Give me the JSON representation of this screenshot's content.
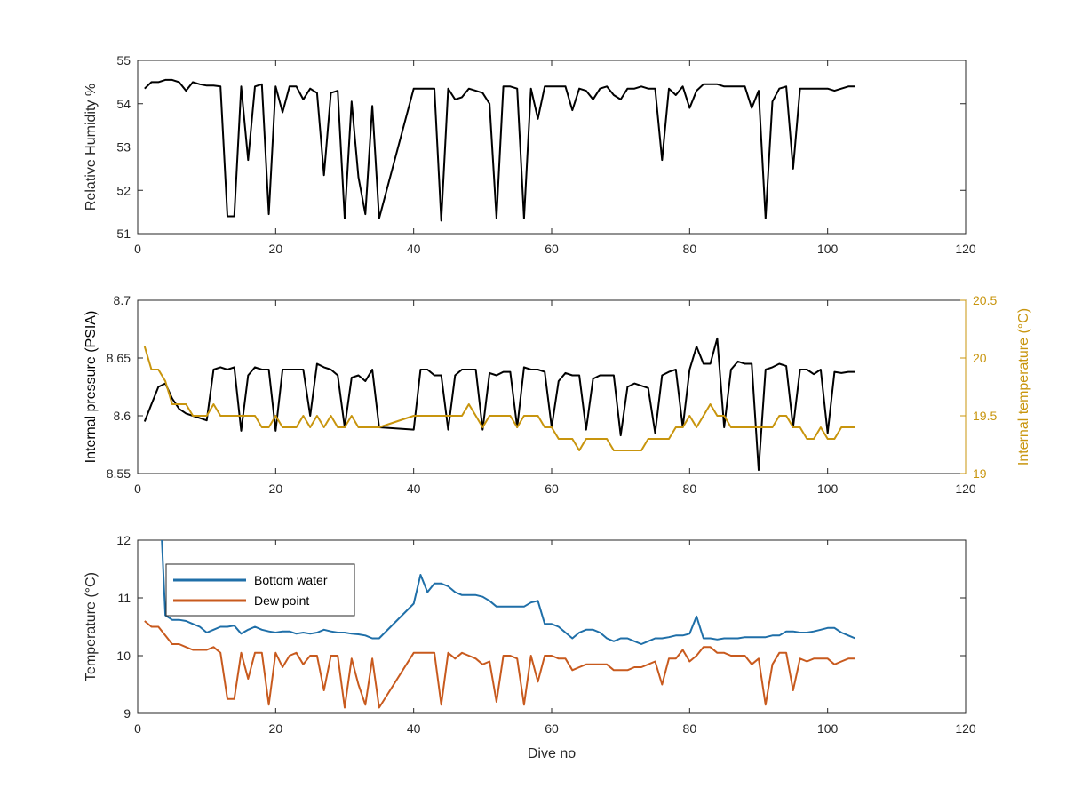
{
  "colors": {
    "black": "#000000",
    "axis": "#262626",
    "gold": "#C8950E",
    "blue": "#1F6FA8",
    "orange": "#C85A1E",
    "tick_label": "#262626"
  },
  "chart_data": [
    {
      "type": "line",
      "xlabel": "",
      "ylabel": "Relative Humidity %",
      "xlim": [
        0,
        120
      ],
      "ylim": [
        51,
        55
      ],
      "xticks": [
        "0",
        "20",
        "40",
        "60",
        "80",
        "100",
        "120"
      ],
      "yticks": [
        "51",
        "52",
        "53",
        "54",
        "55"
      ],
      "grid": false,
      "series": [
        {
          "color": "#000000",
          "x": [
            1,
            2,
            3,
            4,
            5,
            6,
            7,
            8,
            9,
            10,
            11,
            12,
            13,
            14,
            15,
            16,
            17,
            18,
            19,
            20,
            21,
            22,
            23,
            24,
            25,
            26,
            27,
            28,
            29,
            30,
            31,
            32,
            33,
            34,
            35,
            40,
            41,
            42,
            43,
            44,
            45,
            46,
            47,
            48,
            49,
            50,
            51,
            52,
            53,
            54,
            55,
            56,
            57,
            58,
            59,
            60,
            61,
            62,
            63,
            64,
            65,
            66,
            67,
            68,
            69,
            70,
            71,
            72,
            73,
            74,
            75,
            76,
            77,
            78,
            79,
            80,
            81,
            82,
            83,
            84,
            85,
            86,
            87,
            88,
            89,
            90,
            91,
            92,
            93,
            94,
            95,
            96,
            97,
            98,
            99,
            100,
            101,
            102,
            103,
            104
          ],
          "y": [
            54.35,
            54.5,
            54.5,
            54.55,
            54.55,
            54.5,
            54.3,
            54.5,
            54.45,
            54.42,
            54.42,
            54.4,
            51.4,
            51.4,
            54.4,
            52.7,
            54.4,
            54.45,
            51.45,
            54.4,
            53.8,
            54.4,
            54.4,
            54.1,
            54.35,
            54.25,
            52.35,
            54.25,
            54.3,
            51.35,
            54.05,
            52.3,
            51.45,
            53.95,
            51.35,
            54.35,
            54.35,
            54.35,
            54.35,
            51.3,
            54.35,
            54.1,
            54.15,
            54.35,
            54.3,
            54.25,
            54.0,
            51.35,
            54.4,
            54.4,
            54.35,
            51.35,
            54.35,
            53.65,
            54.4,
            54.4,
            54.4,
            54.4,
            53.85,
            54.35,
            54.3,
            54.1,
            54.35,
            54.4,
            54.2,
            54.1,
            54.35,
            54.35,
            54.4,
            54.35,
            54.35,
            52.7,
            54.35,
            54.2,
            54.4,
            53.9,
            54.3,
            54.45,
            54.45,
            54.45,
            54.4,
            54.4,
            54.4,
            54.4,
            53.9,
            54.3,
            51.35,
            54.05,
            54.35,
            54.4,
            52.5,
            54.35,
            54.35,
            54.35,
            54.35,
            54.35,
            54.3,
            54.35,
            54.4,
            54.4
          ]
        }
      ]
    },
    {
      "type": "line",
      "xlabel": "",
      "ylabel": "Internal pressure (PSIA)",
      "y2label": "Internal temperature (°C)",
      "xlim": [
        0,
        120
      ],
      "ylim": [
        8.55,
        8.7
      ],
      "y2lim": [
        19,
        20.5
      ],
      "xticks": [
        "0",
        "20",
        "40",
        "60",
        "80",
        "100",
        "120"
      ],
      "yticks": [
        "8.55",
        "8.6",
        "8.65",
        "8.7"
      ],
      "y2ticks": [
        "19",
        "19.5",
        "20",
        "20.5"
      ],
      "grid": false,
      "series": [
        {
          "axis": "left",
          "color": "#000000",
          "x": [
            1,
            2,
            3,
            4,
            5,
            6,
            7,
            8,
            9,
            10,
            11,
            12,
            13,
            14,
            15,
            16,
            17,
            18,
            19,
            20,
            21,
            22,
            23,
            24,
            25,
            26,
            27,
            28,
            29,
            30,
            31,
            32,
            33,
            34,
            35,
            40,
            41,
            42,
            43,
            44,
            45,
            46,
            47,
            48,
            49,
            50,
            51,
            52,
            53,
            54,
            55,
            56,
            57,
            58,
            59,
            60,
            61,
            62,
            63,
            64,
            65,
            66,
            67,
            68,
            69,
            70,
            71,
            72,
            73,
            74,
            75,
            76,
            77,
            78,
            79,
            80,
            81,
            82,
            83,
            84,
            85,
            86,
            87,
            88,
            89,
            90,
            91,
            92,
            93,
            94,
            95,
            96,
            97,
            98,
            99,
            100,
            101,
            102,
            103,
            104
          ],
          "y": [
            8.595,
            8.61,
            8.625,
            8.628,
            8.615,
            8.606,
            8.602,
            8.6,
            8.598,
            8.596,
            8.64,
            8.642,
            8.64,
            8.642,
            8.587,
            8.635,
            8.642,
            8.64,
            8.64,
            8.587,
            8.64,
            8.64,
            8.64,
            8.64,
            8.6,
            8.645,
            8.642,
            8.64,
            8.635,
            8.59,
            8.633,
            8.635,
            8.63,
            8.64,
            8.59,
            8.588,
            8.64,
            8.64,
            8.635,
            8.635,
            8.588,
            8.635,
            8.64,
            8.64,
            8.64,
            8.588,
            8.637,
            8.635,
            8.638,
            8.638,
            8.59,
            8.642,
            8.64,
            8.64,
            8.638,
            8.59,
            8.63,
            8.637,
            8.635,
            8.635,
            8.588,
            8.632,
            8.635,
            8.635,
            8.635,
            8.583,
            8.625,
            8.628,
            8.626,
            8.624,
            8.585,
            8.635,
            8.638,
            8.64,
            8.59,
            8.64,
            8.66,
            8.645,
            8.645,
            8.667,
            8.59,
            8.64,
            8.647,
            8.645,
            8.645,
            8.553,
            8.64,
            8.642,
            8.645,
            8.643,
            8.59,
            8.64,
            8.64,
            8.636,
            8.64,
            8.585,
            8.638,
            8.637,
            8.638,
            8.638
          ]
        },
        {
          "axis": "right",
          "color": "#C8950E",
          "x": [
            1,
            2,
            3,
            4,
            5,
            6,
            7,
            8,
            9,
            10,
            11,
            12,
            13,
            14,
            15,
            16,
            17,
            18,
            19,
            20,
            21,
            22,
            23,
            24,
            25,
            26,
            27,
            28,
            29,
            30,
            31,
            32,
            33,
            34,
            35,
            40,
            41,
            42,
            43,
            44,
            45,
            46,
            47,
            48,
            49,
            50,
            51,
            52,
            53,
            54,
            55,
            56,
            57,
            58,
            59,
            60,
            61,
            62,
            63,
            64,
            65,
            66,
            67,
            68,
            69,
            70,
            71,
            72,
            73,
            74,
            75,
            76,
            77,
            78,
            79,
            80,
            81,
            82,
            83,
            84,
            85,
            86,
            87,
            88,
            89,
            90,
            91,
            92,
            93,
            94,
            95,
            96,
            97,
            98,
            99,
            100,
            101,
            102,
            103,
            104
          ],
          "y": [
            20.1,
            19.9,
            19.9,
            19.8,
            19.6,
            19.6,
            19.6,
            19.5,
            19.5,
            19.5,
            19.6,
            19.5,
            19.5,
            19.5,
            19.5,
            19.5,
            19.5,
            19.4,
            19.4,
            19.5,
            19.4,
            19.4,
            19.4,
            19.5,
            19.4,
            19.5,
            19.4,
            19.5,
            19.4,
            19.4,
            19.5,
            19.4,
            19.4,
            19.4,
            19.4,
            19.5,
            19.5,
            19.5,
            19.5,
            19.5,
            19.5,
            19.5,
            19.5,
            19.6,
            19.5,
            19.4,
            19.5,
            19.5,
            19.5,
            19.5,
            19.4,
            19.5,
            19.5,
            19.5,
            19.4,
            19.4,
            19.3,
            19.3,
            19.3,
            19.2,
            19.3,
            19.3,
            19.3,
            19.3,
            19.2,
            19.2,
            19.2,
            19.2,
            19.2,
            19.3,
            19.3,
            19.3,
            19.3,
            19.4,
            19.4,
            19.5,
            19.4,
            19.5,
            19.6,
            19.5,
            19.5,
            19.4,
            19.4,
            19.4,
            19.4,
            19.4,
            19.4,
            19.4,
            19.5,
            19.5,
            19.4,
            19.4,
            19.3,
            19.3,
            19.4,
            19.3,
            19.3,
            19.4,
            19.4,
            19.4
          ]
        }
      ]
    },
    {
      "type": "line",
      "xlabel": "Dive no",
      "ylabel": "Temperature (°C)",
      "xlim": [
        0,
        120
      ],
      "ylim": [
        9,
        12
      ],
      "xticks": [
        "0",
        "20",
        "40",
        "60",
        "80",
        "100",
        "120"
      ],
      "yticks": [
        "9",
        "10",
        "11",
        "12"
      ],
      "grid": false,
      "legend": "top-left",
      "series": [
        {
          "name": "Bottom water",
          "color": "#1F6FA8",
          "x": [
            3.5,
            4,
            5,
            6,
            7,
            8,
            9,
            10,
            11,
            12,
            13,
            14,
            15,
            16,
            17,
            18,
            19,
            20,
            21,
            22,
            23,
            24,
            25,
            26,
            27,
            28,
            29,
            30,
            31,
            32,
            33,
            34,
            35,
            40,
            41,
            42,
            43,
            44,
            45,
            46,
            47,
            48,
            49,
            50,
            51,
            52,
            53,
            54,
            55,
            56,
            57,
            58,
            59,
            60,
            61,
            62,
            63,
            64,
            65,
            66,
            67,
            68,
            69,
            70,
            71,
            72,
            73,
            74,
            75,
            76,
            77,
            78,
            79,
            80,
            81,
            82,
            83,
            84,
            85,
            86,
            87,
            88,
            89,
            90,
            91,
            92,
            93,
            94,
            95,
            96,
            97,
            98,
            99,
            100,
            101,
            102,
            103,
            104
          ],
          "y": [
            12.0,
            10.7,
            10.62,
            10.62,
            10.6,
            10.55,
            10.5,
            10.4,
            10.45,
            10.5,
            10.5,
            10.52,
            10.38,
            10.45,
            10.5,
            10.45,
            10.42,
            10.4,
            10.42,
            10.42,
            10.38,
            10.4,
            10.38,
            10.4,
            10.45,
            10.42,
            10.4,
            10.4,
            10.38,
            10.37,
            10.35,
            10.3,
            10.3,
            10.9,
            11.4,
            11.1,
            11.25,
            11.25,
            11.2,
            11.1,
            11.05,
            11.05,
            11.05,
            11.02,
            10.95,
            10.85,
            10.85,
            10.85,
            10.85,
            10.85,
            10.92,
            10.95,
            10.55,
            10.55,
            10.5,
            10.4,
            10.3,
            10.4,
            10.45,
            10.45,
            10.4,
            10.3,
            10.25,
            10.3,
            10.3,
            10.25,
            10.2,
            10.25,
            10.3,
            10.3,
            10.32,
            10.35,
            10.35,
            10.38,
            10.68,
            10.3,
            10.3,
            10.28,
            10.3,
            10.3,
            10.3,
            10.32,
            10.32,
            10.32,
            10.32,
            10.35,
            10.35,
            10.42,
            10.42,
            10.4,
            10.4,
            10.42,
            10.45,
            10.48,
            10.48,
            10.4,
            10.35,
            10.3
          ]
        },
        {
          "name": "Dew point",
          "color": "#C85A1E",
          "x": [
            1,
            2,
            3,
            4,
            5,
            6,
            7,
            8,
            9,
            10,
            11,
            12,
            13,
            14,
            15,
            16,
            17,
            18,
            19,
            20,
            21,
            22,
            23,
            24,
            25,
            26,
            27,
            28,
            29,
            30,
            31,
            32,
            33,
            34,
            35,
            40,
            41,
            42,
            43,
            44,
            45,
            46,
            47,
            48,
            49,
            50,
            51,
            52,
            53,
            54,
            55,
            56,
            57,
            58,
            59,
            60,
            61,
            62,
            63,
            64,
            65,
            66,
            67,
            68,
            69,
            70,
            71,
            72,
            73,
            74,
            75,
            76,
            77,
            78,
            79,
            80,
            81,
            82,
            83,
            84,
            85,
            86,
            87,
            88,
            89,
            90,
            91,
            92,
            93,
            94,
            95,
            96,
            97,
            98,
            99,
            100,
            101,
            102,
            103,
            104
          ],
          "y": [
            10.6,
            10.5,
            10.5,
            10.35,
            10.2,
            10.2,
            10.15,
            10.1,
            10.1,
            10.1,
            10.15,
            10.05,
            9.25,
            9.25,
            10.05,
            9.6,
            10.05,
            10.05,
            9.15,
            10.05,
            9.8,
            10.0,
            10.05,
            9.85,
            10.0,
            10.0,
            9.4,
            10.0,
            10.0,
            9.1,
            9.95,
            9.5,
            9.15,
            9.95,
            9.1,
            10.05,
            10.05,
            10.05,
            10.05,
            9.15,
            10.05,
            9.95,
            10.05,
            10.0,
            9.95,
            9.85,
            9.9,
            9.2,
            10.0,
            10.0,
            9.95,
            9.15,
            10.0,
            9.55,
            10.0,
            10.0,
            9.95,
            9.95,
            9.75,
            9.8,
            9.85,
            9.85,
            9.85,
            9.85,
            9.75,
            9.75,
            9.75,
            9.8,
            9.8,
            9.85,
            9.9,
            9.5,
            9.95,
            9.95,
            10.1,
            9.9,
            10.0,
            10.15,
            10.15,
            10.05,
            10.05,
            10.0,
            10.0,
            10.0,
            9.85,
            9.95,
            9.15,
            9.85,
            10.05,
            10.05,
            9.4,
            9.95,
            9.9,
            9.95,
            9.95,
            9.95,
            9.85,
            9.9,
            9.95,
            9.95
          ]
        }
      ]
    }
  ]
}
